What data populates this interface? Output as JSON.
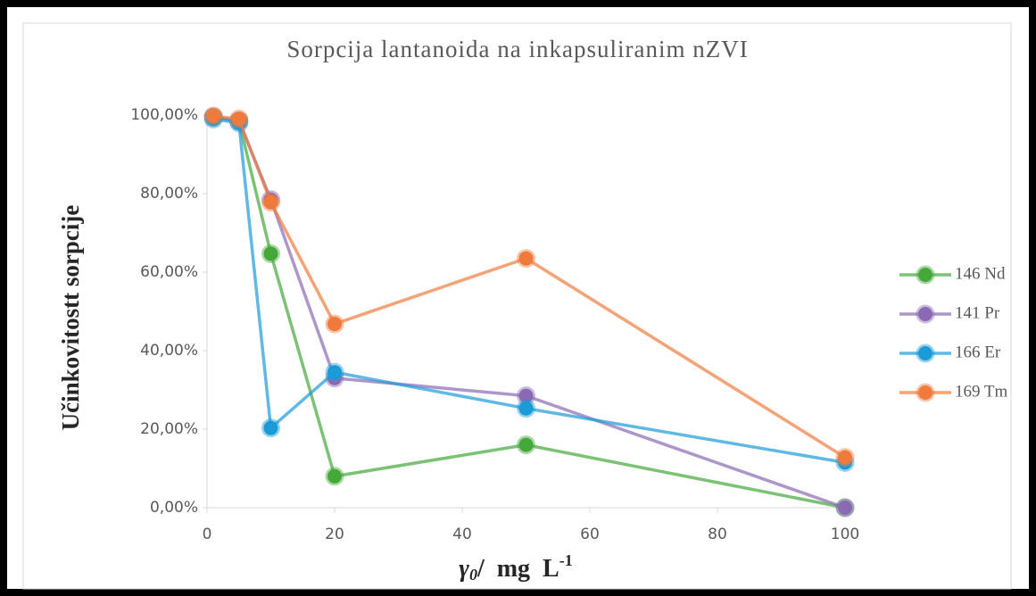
{
  "chart_data": {
    "type": "line",
    "title": "Sorpcija lantanoida na inkapsuliranim nZVI",
    "ylabel": "Učinkovitostt sorpcije",
    "xlabel": {
      "symbol": "γ",
      "subscript": "0",
      "unit": "/  mg  L",
      "superscript": "-1"
    },
    "x": [
      1,
      5,
      10,
      20,
      50,
      100
    ],
    "series": [
      {
        "name": "146 Nd",
        "color": "#45a83a",
        "values": [
          99.5,
          98.5,
          64.7,
          8,
          16,
          0
        ]
      },
      {
        "name": "141 Pr",
        "color": "#8a6bb3",
        "values": [
          99.5,
          98.5,
          78.5,
          33,
          28.5,
          0
        ]
      },
      {
        "name": "166 Er",
        "color": "#1b9bd8",
        "values": [
          99,
          98,
          20.3,
          34.5,
          25.3,
          11.5
        ]
      },
      {
        "name": "169 Tm",
        "color": "#ef7a3c",
        "values": [
          99.8,
          99,
          77.8,
          46.8,
          63.5,
          12.8
        ]
      }
    ],
    "xlim": [
      0,
      100
    ],
    "xticks": [
      0,
      20,
      40,
      60,
      80,
      100
    ],
    "ylim": [
      0,
      100
    ],
    "yticks": [
      {
        "value": 0,
        "label": "0,00%"
      },
      {
        "value": 20,
        "label": "20,00%"
      },
      {
        "value": 40,
        "label": "40,00%"
      },
      {
        "value": 60,
        "label": "60,00%"
      },
      {
        "value": 80,
        "label": "80,00%"
      },
      {
        "value": 100,
        "label": "100,00%"
      }
    ],
    "grid": false,
    "legend": "right"
  }
}
